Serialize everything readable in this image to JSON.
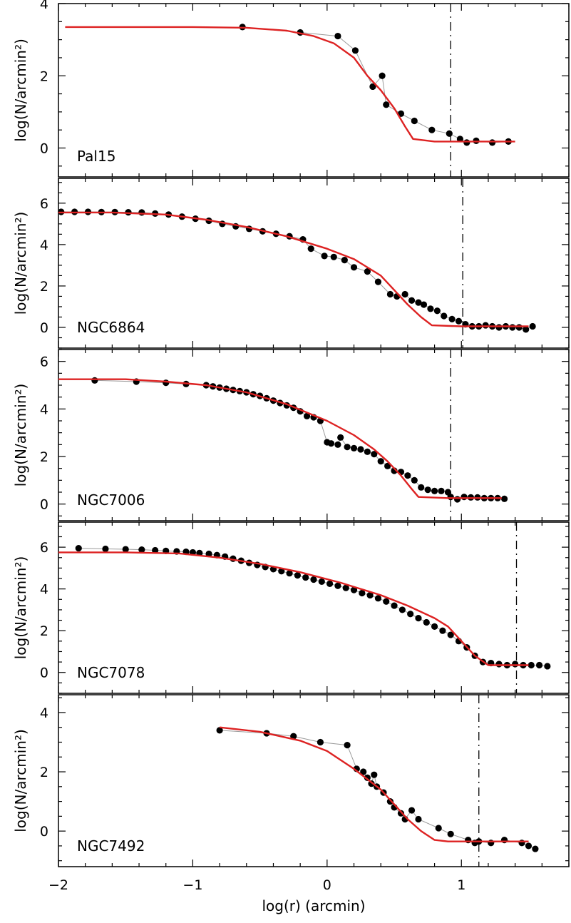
{
  "chart_data": [
    {
      "type": "scatter",
      "panel_label": "Pal15",
      "ylabel": "log(N/arcmin²)",
      "xlabel": "",
      "xlim": [
        -2,
        1.8
      ],
      "ylim": [
        -0.8,
        4
      ],
      "yticks": [
        0,
        2,
        4
      ],
      "vline": 0.92,
      "series": [
        {
          "role": "observed",
          "x": [
            -0.63,
            -0.2,
            0.08,
            0.21,
            0.34,
            0.41,
            0.44,
            0.55,
            0.65,
            0.78,
            0.91,
            0.99,
            1.04,
            1.11,
            1.23,
            1.35
          ],
          "y": [
            3.35,
            3.2,
            3.1,
            2.7,
            1.7,
            2.0,
            1.2,
            0.95,
            0.75,
            0.5,
            0.4,
            0.25,
            0.15,
            0.2,
            0.15,
            0.18
          ]
        },
        {
          "role": "model",
          "color": "#dd2222",
          "x": [
            -1.95,
            -1.5,
            -1.0,
            -0.6,
            -0.3,
            -0.1,
            0.05,
            0.2,
            0.3,
            0.4,
            0.5,
            0.58,
            0.64,
            0.8,
            1.0,
            1.2,
            1.4
          ],
          "y": [
            3.35,
            3.35,
            3.35,
            3.33,
            3.25,
            3.1,
            2.9,
            2.5,
            2.0,
            1.6,
            1.1,
            0.6,
            0.25,
            0.18,
            0.18,
            0.18,
            0.18
          ]
        }
      ]
    },
    {
      "type": "scatter",
      "panel_label": "NGC6864",
      "ylabel": "log(N/arcmin²)",
      "xlabel": "",
      "xlim": [
        -2,
        1.8
      ],
      "ylim": [
        -1,
        7.2
      ],
      "yticks": [
        0,
        2,
        4,
        6
      ],
      "vline": 1.01,
      "series": [
        {
          "role": "observed",
          "x": [
            -1.98,
            -1.88,
            -1.78,
            -1.68,
            -1.58,
            -1.48,
            -1.38,
            -1.28,
            -1.18,
            -1.08,
            -0.98,
            -0.88,
            -0.78,
            -0.68,
            -0.58,
            -0.48,
            -0.38,
            -0.28,
            -0.18,
            -0.12,
            -0.02,
            0.05,
            0.13,
            0.2,
            0.3,
            0.38,
            0.47,
            0.52,
            0.58,
            0.63,
            0.68,
            0.72,
            0.77,
            0.82,
            0.87,
            0.93,
            0.98,
            1.03,
            1.08,
            1.13,
            1.18,
            1.23,
            1.28,
            1.33,
            1.38,
            1.43,
            1.48,
            1.53
          ],
          "y": [
            5.58,
            5.58,
            5.58,
            5.57,
            5.57,
            5.56,
            5.55,
            5.5,
            5.45,
            5.35,
            5.25,
            5.15,
            5.0,
            4.88,
            4.76,
            4.64,
            4.52,
            4.4,
            4.25,
            3.8,
            3.45,
            3.4,
            3.25,
            2.9,
            2.7,
            2.2,
            1.6,
            1.5,
            1.6,
            1.3,
            1.2,
            1.1,
            0.9,
            0.8,
            0.55,
            0.4,
            0.3,
            0.15,
            0.05,
            0.05,
            0.1,
            0.05,
            0.0,
            0.05,
            0.0,
            0.0,
            -0.1,
            0.05
          ]
        },
        {
          "role": "model",
          "color": "#dd2222",
          "x": [
            -2,
            -1.6,
            -1.2,
            -0.9,
            -0.6,
            -0.3,
            0.0,
            0.2,
            0.4,
            0.5,
            0.6,
            0.7,
            0.78,
            1.0,
            1.2,
            1.5
          ],
          "y": [
            5.55,
            5.55,
            5.45,
            5.2,
            4.85,
            4.4,
            3.8,
            3.3,
            2.5,
            1.8,
            1.1,
            0.5,
            0.1,
            0.05,
            0.05,
            0.05
          ]
        }
      ]
    },
    {
      "type": "scatter",
      "panel_label": "NGC7006",
      "ylabel": "log(N/arcmin²)",
      "xlabel": "",
      "xlim": [
        -2,
        1.8
      ],
      "ylim": [
        -0.7,
        6.5
      ],
      "yticks": [
        0,
        2,
        4,
        6
      ],
      "vline": 0.92,
      "series": [
        {
          "role": "observed",
          "x": [
            -1.73,
            -1.42,
            -1.2,
            -1.05,
            -0.9,
            -0.85,
            -0.8,
            -0.75,
            -0.7,
            -0.65,
            -0.6,
            -0.55,
            -0.5,
            -0.45,
            -0.4,
            -0.35,
            -0.3,
            -0.25,
            -0.2,
            -0.15,
            -0.1,
            -0.05,
            0.0,
            0.03,
            0.08,
            0.1,
            0.15,
            0.2,
            0.25,
            0.3,
            0.35,
            0.4,
            0.45,
            0.5,
            0.55,
            0.6,
            0.65,
            0.7,
            0.75,
            0.8,
            0.85,
            0.9,
            0.92,
            0.97,
            1.02,
            1.07,
            1.12,
            1.17,
            1.22,
            1.27,
            1.32
          ],
          "y": [
            5.2,
            5.15,
            5.1,
            5.05,
            5.0,
            4.95,
            4.9,
            4.85,
            4.8,
            4.75,
            4.7,
            4.62,
            4.55,
            4.45,
            4.35,
            4.25,
            4.15,
            4.05,
            3.9,
            3.7,
            3.65,
            3.5,
            2.6,
            2.55,
            2.5,
            2.8,
            2.4,
            2.35,
            2.3,
            2.2,
            2.1,
            1.8,
            1.6,
            1.4,
            1.35,
            1.2,
            1.0,
            0.7,
            0.6,
            0.55,
            0.55,
            0.5,
            0.3,
            0.2,
            0.3,
            0.28,
            0.28,
            0.25,
            0.25,
            0.25,
            0.22
          ]
        },
        {
          "role": "model",
          "color": "#dd2222",
          "x": [
            -2,
            -1.5,
            -1.2,
            -0.9,
            -0.6,
            -0.3,
            0.0,
            0.2,
            0.35,
            0.45,
            0.55,
            0.62,
            0.68,
            0.9,
            1.1,
            1.3
          ],
          "y": [
            5.25,
            5.25,
            5.15,
            5.0,
            4.7,
            4.2,
            3.5,
            2.9,
            2.3,
            1.8,
            1.2,
            0.7,
            0.3,
            0.25,
            0.25,
            0.25
          ]
        }
      ]
    },
    {
      "type": "scatter",
      "panel_label": "NGC7078",
      "ylabel": "log(N/arcmin²)",
      "xlabel": "",
      "xlim": [
        -2,
        1.8
      ],
      "ylim": [
        -1,
        7.2
      ],
      "yticks": [
        0,
        2,
        4,
        6
      ],
      "vline": 1.41,
      "series": [
        {
          "role": "observed",
          "x": [
            -1.85,
            -1.65,
            -1.5,
            -1.38,
            -1.28,
            -1.2,
            -1.12,
            -1.05,
            -1.0,
            -0.95,
            -0.88,
            -0.82,
            -0.76,
            -0.7,
            -0.64,
            -0.58,
            -0.52,
            -0.46,
            -0.4,
            -0.34,
            -0.28,
            -0.22,
            -0.16,
            -0.1,
            -0.04,
            0.02,
            0.08,
            0.14,
            0.2,
            0.26,
            0.32,
            0.38,
            0.44,
            0.5,
            0.56,
            0.62,
            0.68,
            0.74,
            0.8,
            0.86,
            0.92,
            0.98,
            1.04,
            1.1,
            1.16,
            1.22,
            1.28,
            1.34,
            1.4,
            1.46,
            1.52,
            1.58,
            1.64
          ],
          "y": [
            5.95,
            5.92,
            5.9,
            5.88,
            5.85,
            5.82,
            5.8,
            5.78,
            5.75,
            5.72,
            5.68,
            5.62,
            5.55,
            5.45,
            5.35,
            5.25,
            5.15,
            5.05,
            4.95,
            4.85,
            4.75,
            4.65,
            4.55,
            4.45,
            4.35,
            4.25,
            4.15,
            4.05,
            3.95,
            3.8,
            3.7,
            3.55,
            3.4,
            3.2,
            3.0,
            2.8,
            2.6,
            2.4,
            2.2,
            2.0,
            1.8,
            1.5,
            1.2,
            0.8,
            0.5,
            0.45,
            0.4,
            0.35,
            0.4,
            0.35,
            0.35,
            0.35,
            0.3
          ]
        },
        {
          "role": "model",
          "color": "#dd2222",
          "x": [
            -2,
            -1.5,
            -1.1,
            -0.8,
            -0.5,
            -0.2,
            0.1,
            0.4,
            0.6,
            0.8,
            0.9,
            1.0,
            1.1,
            1.2,
            1.3,
            1.4,
            1.5
          ],
          "y": [
            5.75,
            5.75,
            5.7,
            5.5,
            5.2,
            4.8,
            4.3,
            3.7,
            3.2,
            2.6,
            2.2,
            1.5,
            0.8,
            0.35,
            0.35,
            0.35,
            0.35
          ]
        }
      ]
    },
    {
      "type": "scatter",
      "panel_label": "NGC7492",
      "ylabel": "log(N/arcmin²)",
      "xlabel": "log(r)  (arcmin)",
      "xlim": [
        -2,
        1.8
      ],
      "ylim": [
        -1.2,
        4.6
      ],
      "yticks": [
        0,
        2,
        4
      ],
      "xticks": [
        -2,
        -1,
        0,
        1
      ],
      "vline": 1.13,
      "series": [
        {
          "role": "observed",
          "x": [
            -0.8,
            -0.45,
            -0.25,
            -0.05,
            0.15,
            0.22,
            0.27,
            0.3,
            0.33,
            0.35,
            0.37,
            0.42,
            0.47,
            0.5,
            0.55,
            0.58,
            0.63,
            0.68,
            0.83,
            0.92,
            1.05,
            1.1,
            1.13,
            1.22,
            1.32,
            1.45,
            1.5,
            1.55
          ],
          "y": [
            3.4,
            3.3,
            3.2,
            3.0,
            2.9,
            2.1,
            2.0,
            1.8,
            1.6,
            1.9,
            1.5,
            1.3,
            1.0,
            0.8,
            0.6,
            0.4,
            0.7,
            0.4,
            0.1,
            -0.1,
            -0.3,
            -0.4,
            -0.35,
            -0.4,
            -0.3,
            -0.4,
            -0.5,
            -0.6
          ]
        },
        {
          "role": "model",
          "color": "#dd2222",
          "x": [
            -0.8,
            -0.5,
            -0.2,
            0.0,
            0.2,
            0.4,
            0.5,
            0.6,
            0.7,
            0.8,
            0.9,
            1.0,
            1.2,
            1.5
          ],
          "y": [
            3.5,
            3.35,
            3.05,
            2.7,
            2.1,
            1.4,
            0.9,
            0.4,
            0.0,
            -0.3,
            -0.35,
            -0.35,
            -0.35,
            -0.35
          ]
        }
      ]
    }
  ]
}
